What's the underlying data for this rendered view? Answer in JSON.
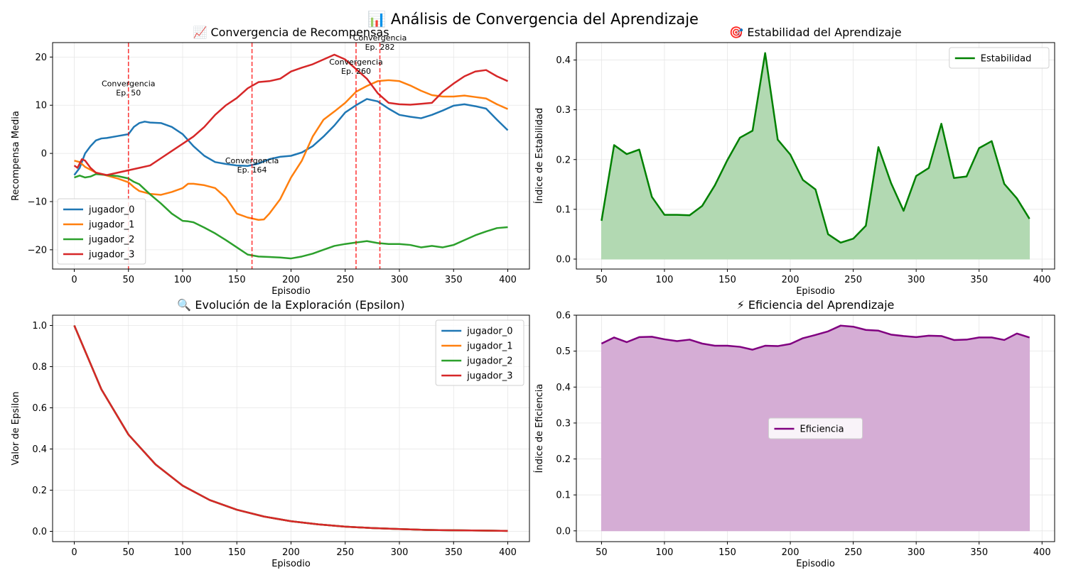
{
  "figure": {
    "title": "📊 Análisis de Convergencia del Aprendizaje"
  },
  "chart_data": [
    {
      "id": "rewards",
      "type": "line",
      "title": "📈 Convergencia de Recompensas",
      "xlabel": "Episodio",
      "ylabel": "Recompensa Media",
      "xlim": [
        -20,
        420
      ],
      "ylim": [
        -24,
        23
      ],
      "xticks": [
        0,
        50,
        100,
        150,
        200,
        250,
        300,
        350,
        400
      ],
      "yticks": [
        -20,
        -10,
        0,
        10,
        20
      ],
      "tick_labels_x": [
        "0",
        "50",
        "100",
        "150",
        "200",
        "250",
        "300",
        "350",
        "400"
      ],
      "tick_labels_y": [
        "−20",
        "−10",
        "0",
        "10",
        "20"
      ],
      "grid": true,
      "legend_position": "lower-left",
      "series": [
        {
          "name": "jugador_0",
          "color": "#1f77b4",
          "x": [
            0,
            5,
            10,
            15,
            20,
            25,
            30,
            40,
            50,
            55,
            60,
            65,
            70,
            80,
            90,
            100,
            110,
            120,
            130,
            140,
            150,
            160,
            170,
            180,
            190,
            200,
            210,
            220,
            230,
            240,
            250,
            260,
            270,
            280,
            290,
            300,
            310,
            320,
            330,
            340,
            350,
            360,
            370,
            380,
            390,
            400
          ],
          "y": [
            -4.5,
            -3,
            0,
            1.5,
            2.7,
            3.1,
            3.2,
            3.6,
            4,
            5.5,
            6.3,
            6.6,
            6.4,
            6.3,
            5.5,
            4,
            1.5,
            -0.5,
            -1.8,
            -2.2,
            -2.5,
            -2.6,
            -2.1,
            -1.2,
            -0.7,
            -0.5,
            0.2,
            1.5,
            3.5,
            5.8,
            8.5,
            10,
            11.3,
            10.8,
            9.3,
            8,
            7.6,
            7.3,
            8,
            8.9,
            9.9,
            10.2,
            9.8,
            9.3,
            7,
            4.8
          ]
        },
        {
          "name": "jugador_1",
          "color": "#ff7f0e",
          "x": [
            0,
            5,
            10,
            20,
            30,
            40,
            50,
            55,
            60,
            70,
            80,
            90,
            100,
            105,
            110,
            120,
            130,
            140,
            150,
            160,
            170,
            175,
            180,
            190,
            200,
            210,
            220,
            230,
            240,
            250,
            260,
            270,
            280,
            290,
            300,
            310,
            320,
            330,
            340,
            350,
            360,
            370,
            380,
            390,
            400
          ],
          "y": [
            -1.5,
            -1.8,
            -2.8,
            -4,
            -4.6,
            -5.2,
            -6,
            -7,
            -7.8,
            -8.4,
            -8.6,
            -8,
            -7.2,
            -6.3,
            -6.3,
            -6.6,
            -7.2,
            -9.2,
            -12.5,
            -13.3,
            -13.8,
            -13.7,
            -12.5,
            -9.5,
            -5,
            -1.5,
            3.5,
            7,
            8.7,
            10.5,
            12.8,
            14,
            15,
            15.2,
            15,
            14.1,
            13,
            12.1,
            11.8,
            11.8,
            12,
            11.7,
            11.4,
            10.2,
            9.2
          ]
        },
        {
          "name": "jugador_2",
          "color": "#2ca02c",
          "x": [
            0,
            5,
            10,
            15,
            20,
            30,
            40,
            50,
            55,
            60,
            70,
            80,
            90,
            100,
            105,
            110,
            120,
            130,
            140,
            150,
            160,
            170,
            180,
            190,
            200,
            210,
            220,
            230,
            240,
            250,
            260,
            270,
            280,
            290,
            300,
            310,
            320,
            330,
            340,
            350,
            360,
            370,
            380,
            390,
            400
          ],
          "y": [
            -5,
            -4.6,
            -5,
            -4.8,
            -4.3,
            -4.5,
            -4.7,
            -5.2,
            -5.9,
            -6.4,
            -8.5,
            -10.4,
            -12.5,
            -14,
            -14.1,
            -14.3,
            -15.4,
            -16.6,
            -18,
            -19.5,
            -21,
            -21.4,
            -21.5,
            -21.6,
            -21.8,
            -21.4,
            -20.8,
            -20,
            -19.2,
            -18.8,
            -18.5,
            -18.2,
            -18.6,
            -18.8,
            -18.8,
            -19,
            -19.5,
            -19.2,
            -19.5,
            -19,
            -18,
            -17,
            -16.2,
            -15.5,
            -15.3
          ]
        },
        {
          "name": "jugador_3",
          "color": "#d62728",
          "x": [
            0,
            3,
            7,
            10,
            15,
            20,
            30,
            40,
            50,
            60,
            70,
            80,
            90,
            100,
            110,
            120,
            130,
            140,
            150,
            160,
            170,
            180,
            190,
            200,
            210,
            220,
            230,
            240,
            250,
            260,
            270,
            280,
            290,
            300,
            310,
            320,
            330,
            340,
            350,
            360,
            370,
            380,
            390,
            400
          ],
          "y": [
            -2.5,
            -3,
            -1.2,
            -1.5,
            -3,
            -4,
            -4.5,
            -4,
            -3.5,
            -3,
            -2.5,
            -1,
            0.5,
            2,
            3.5,
            5.5,
            8,
            10,
            11.5,
            13.5,
            14.8,
            15,
            15.5,
            17,
            17.8,
            18.5,
            19.5,
            20.5,
            19.5,
            17.5,
            15.5,
            12.5,
            10.5,
            10.2,
            10.1,
            10.3,
            10.5,
            12.8,
            14.5,
            16,
            17,
            17.3,
            16,
            15
          ]
        }
      ],
      "vlines": [
        50,
        164,
        260,
        282
      ],
      "annotations": [
        {
          "x": 50,
          "y": 13.5,
          "line1": "Convergencia",
          "line2": "Ep. 50"
        },
        {
          "x": 164,
          "y": -2.5,
          "line1": "Convergencia",
          "line2": "Ep. 164"
        },
        {
          "x": 260,
          "y": 18,
          "line1": "Convergencia",
          "line2": "Ep. 260"
        },
        {
          "x": 282,
          "y": 23,
          "line1": "Convergencia",
          "line2": "Ep. 282"
        }
      ]
    },
    {
      "id": "stability",
      "type": "area",
      "title": "🎯 Estabilidad del Aprendizaje",
      "xlabel": "Episodio",
      "ylabel": "Índice de Estabilidad",
      "xlim": [
        30,
        410
      ],
      "ylim": [
        -0.02,
        0.435
      ],
      "xticks": [
        50,
        100,
        150,
        200,
        250,
        300,
        350,
        400
      ],
      "yticks": [
        0.0,
        0.1,
        0.2,
        0.3,
        0.4
      ],
      "tick_labels_x": [
        "50",
        "100",
        "150",
        "200",
        "250",
        "300",
        "350",
        "400"
      ],
      "tick_labels_y": [
        "0.0",
        "0.1",
        "0.2",
        "0.3",
        "0.4"
      ],
      "grid": true,
      "legend_position": "upper-right",
      "series": [
        {
          "name": "Estabilidad",
          "color": "#008000",
          "fill": "#b2d9b2",
          "x": [
            50,
            60,
            70,
            80,
            90,
            100,
            110,
            120,
            130,
            140,
            150,
            160,
            170,
            180,
            190,
            200,
            210,
            220,
            230,
            240,
            250,
            260,
            270,
            280,
            290,
            300,
            310,
            320,
            330,
            340,
            350,
            360,
            370,
            380,
            390
          ],
          "y": [
            0.077,
            0.229,
            0.211,
            0.22,
            0.125,
            0.089,
            0.089,
            0.088,
            0.107,
            0.148,
            0.199,
            0.244,
            0.258,
            0.414,
            0.24,
            0.21,
            0.159,
            0.14,
            0.05,
            0.033,
            0.041,
            0.067,
            0.225,
            0.153,
            0.097,
            0.167,
            0.183,
            0.272,
            0.163,
            0.166,
            0.223,
            0.237,
            0.151,
            0.122,
            0.081
          ]
        }
      ]
    },
    {
      "id": "epsilon",
      "type": "line",
      "title": "🔍 Evolución de la Exploración (Epsilon)",
      "xlabel": "Episodio",
      "ylabel": "Valor de Epsilon",
      "xlim": [
        -20,
        420
      ],
      "ylim": [
        -0.05,
        1.05
      ],
      "xticks": [
        0,
        50,
        100,
        150,
        200,
        250,
        300,
        350,
        400
      ],
      "yticks": [
        0.0,
        0.2,
        0.4,
        0.6,
        0.8,
        1.0
      ],
      "tick_labels_x": [
        "0",
        "50",
        "100",
        "150",
        "200",
        "250",
        "300",
        "350",
        "400"
      ],
      "tick_labels_y": [
        "0.0",
        "0.2",
        "0.4",
        "0.6",
        "0.8",
        "1.0"
      ],
      "grid": true,
      "legend_position": "upper-right",
      "series": [
        {
          "name": "jugador_0",
          "color": "#1f77b4",
          "x": [
            0,
            25,
            50,
            75,
            100,
            125,
            150,
            175,
            200,
            225,
            250,
            275,
            300,
            325,
            350,
            375,
            400
          ],
          "y": [
            1.0,
            0.69,
            0.47,
            0.325,
            0.222,
            0.152,
            0.105,
            0.072,
            0.049,
            0.034,
            0.023,
            0.016,
            0.011,
            0.007,
            0.005,
            0.004,
            0.002
          ]
        },
        {
          "name": "jugador_1",
          "color": "#ff7f0e",
          "x": [
            0,
            25,
            50,
            75,
            100,
            125,
            150,
            175,
            200,
            225,
            250,
            275,
            300,
            325,
            350,
            375,
            400
          ],
          "y": [
            1.0,
            0.69,
            0.47,
            0.325,
            0.222,
            0.152,
            0.105,
            0.072,
            0.049,
            0.034,
            0.023,
            0.016,
            0.011,
            0.007,
            0.005,
            0.004,
            0.002
          ]
        },
        {
          "name": "jugador_2",
          "color": "#2ca02c",
          "x": [
            0,
            25,
            50,
            75,
            100,
            125,
            150,
            175,
            200,
            225,
            250,
            275,
            300,
            325,
            350,
            375,
            400
          ],
          "y": [
            1.0,
            0.69,
            0.47,
            0.325,
            0.222,
            0.152,
            0.105,
            0.072,
            0.049,
            0.034,
            0.023,
            0.016,
            0.011,
            0.007,
            0.005,
            0.004,
            0.002
          ]
        },
        {
          "name": "jugador_3",
          "color": "#d62728",
          "x": [
            0,
            25,
            50,
            75,
            100,
            125,
            150,
            175,
            200,
            225,
            250,
            275,
            300,
            325,
            350,
            375,
            400
          ],
          "y": [
            1.0,
            0.69,
            0.47,
            0.325,
            0.222,
            0.152,
            0.105,
            0.072,
            0.049,
            0.034,
            0.023,
            0.016,
            0.011,
            0.007,
            0.005,
            0.004,
            0.002
          ]
        }
      ]
    },
    {
      "id": "efficiency",
      "type": "area",
      "title": "⚡ Eficiencia del Aprendizaje",
      "xlabel": "Episodio",
      "ylabel": "Índice de Eficiencia",
      "xlim": [
        30,
        410
      ],
      "ylim": [
        -0.03,
        0.6
      ],
      "xticks": [
        50,
        100,
        150,
        200,
        250,
        300,
        350,
        400
      ],
      "yticks": [
        0.0,
        0.1,
        0.2,
        0.3,
        0.4,
        0.5,
        0.6
      ],
      "tick_labels_x": [
        "50",
        "100",
        "150",
        "200",
        "250",
        "300",
        "350",
        "400"
      ],
      "tick_labels_y": [
        "0.0",
        "0.1",
        "0.2",
        "0.3",
        "0.4",
        "0.5",
        "0.6"
      ],
      "grid": true,
      "legend_position": "center",
      "series": [
        {
          "name": "Eficiencia",
          "color": "#800080",
          "fill": "#d5add5",
          "x": [
            50,
            60,
            70,
            80,
            90,
            100,
            110,
            120,
            130,
            140,
            150,
            160,
            170,
            180,
            190,
            200,
            210,
            220,
            230,
            240,
            250,
            260,
            270,
            280,
            290,
            300,
            310,
            320,
            330,
            340,
            350,
            360,
            370,
            380,
            390
          ],
          "y": [
            0.521,
            0.538,
            0.525,
            0.539,
            0.54,
            0.533,
            0.528,
            0.532,
            0.521,
            0.515,
            0.515,
            0.512,
            0.504,
            0.515,
            0.514,
            0.52,
            0.536,
            0.545,
            0.555,
            0.571,
            0.568,
            0.559,
            0.557,
            0.546,
            0.542,
            0.539,
            0.543,
            0.542,
            0.531,
            0.532,
            0.538,
            0.538,
            0.531,
            0.549,
            0.538
          ]
        }
      ]
    }
  ]
}
